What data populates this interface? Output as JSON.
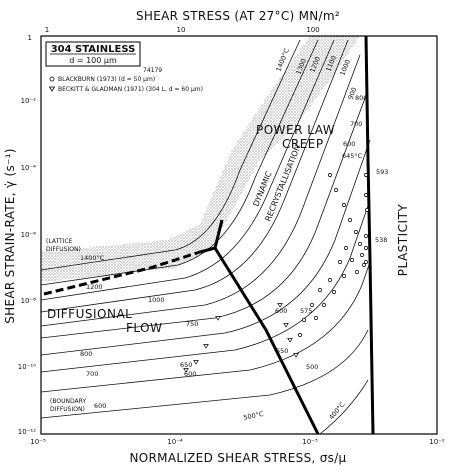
{
  "chart_data": {
    "type": "deformation-mechanism-map",
    "top_title": "SHEAR STRESS (AT 27°C) MN/m²",
    "x_title": "NORMALIZED SHEAR STRESS, σs/μ",
    "y_title": "SHEAR STRAIN-RATE, γ̇ (s⁻¹)",
    "x_ticks": [
      "10⁻⁵",
      "10⁻⁴",
      "10⁻³",
      "10⁻²"
    ],
    "top_ticks": [
      "1",
      "10",
      "100"
    ],
    "y_ticks": [
      "1",
      "10⁻²",
      "10⁻⁴",
      "10⁻⁶",
      "10⁻⁸",
      "10⁻¹⁰",
      "10⁻¹²"
    ],
    "legend": {
      "title": "304 STAINLESS",
      "subtitle": "d = 100 μm",
      "code": "74179",
      "entries": [
        "BLACKBURN (1973) (d = 50 μm)",
        "BECKITT & GLADMAN (1971) (304 L, d = 60 μm)"
      ]
    },
    "regions": {
      "power_law_1": "POWER LAW",
      "power_law_2": "CREEP",
      "dynamic": "DYNAMIC",
      "recryst": "RECRYSTALLISATION",
      "diffusional": "DIFFUSIONAL",
      "flow": "FLOW",
      "plasticity": "PLASTICITY",
      "lattice_1": "(LATTICE",
      "lattice_2": "DIFFUSION)",
      "boundary_1": "(BOUNDARY",
      "boundary_2": "DIFFUSION)"
    },
    "contour_labels": [
      "1400°C",
      "1300",
      "1200",
      "1100",
      "1000",
      "900",
      "800",
      "700",
      "600",
      "500°C",
      "400°C",
      "1400°C",
      "1200",
      "1000",
      "800",
      "700",
      "600",
      "750",
      "650",
      "600"
    ],
    "data_labels": [
      "645°C",
      "593",
      "538",
      "600",
      "575",
      "550",
      "500"
    ]
  }
}
